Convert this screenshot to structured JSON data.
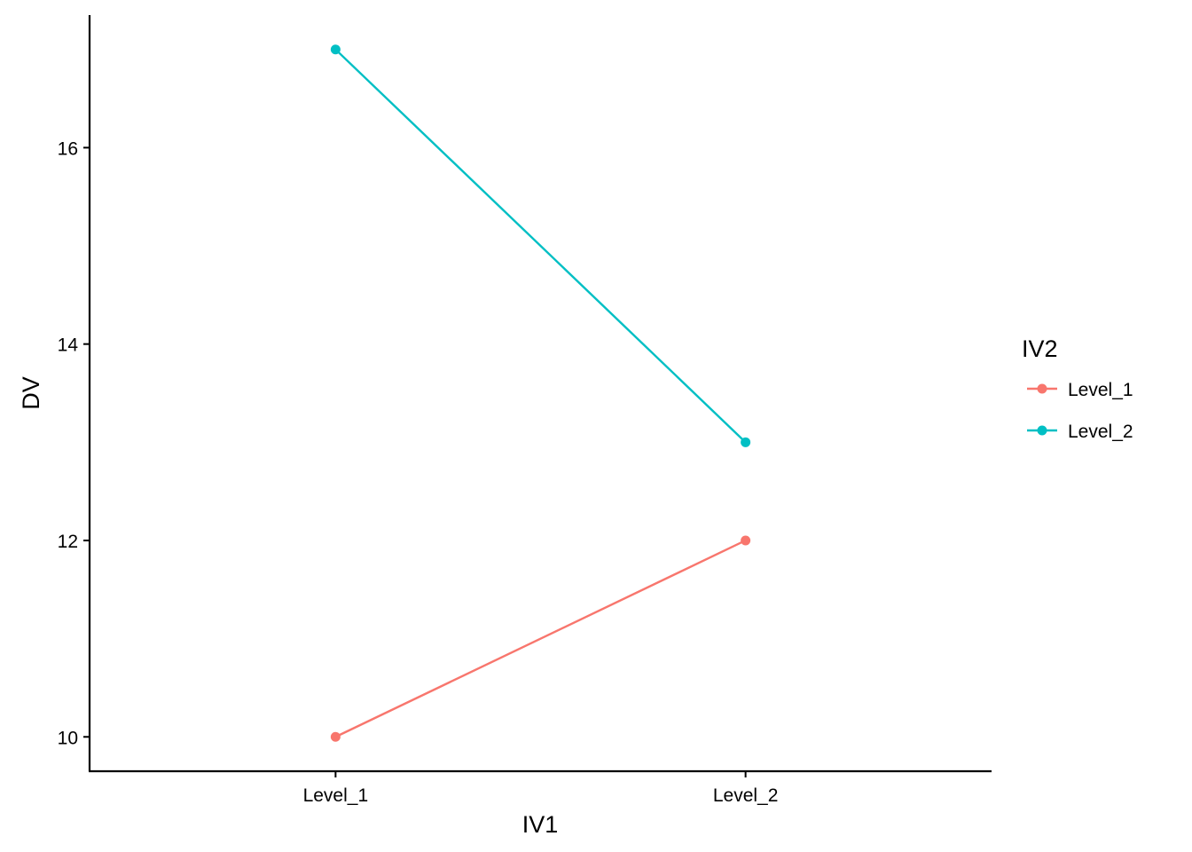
{
  "chart_data": {
    "type": "line",
    "title": "",
    "xlabel": "IV1",
    "ylabel": "DV",
    "categories": [
      "Level_1",
      "Level_2"
    ],
    "ylim": [
      9.65,
      17.35
    ],
    "yticks": [
      10,
      12,
      14,
      16
    ],
    "grid": false,
    "legend": {
      "title": "IV2",
      "position": "right"
    },
    "series": [
      {
        "name": "Level_1",
        "values": [
          10,
          12
        ],
        "color": "#F8766D"
      },
      {
        "name": "Level_2",
        "values": [
          17,
          13
        ],
        "color": "#00BFC4"
      }
    ]
  }
}
